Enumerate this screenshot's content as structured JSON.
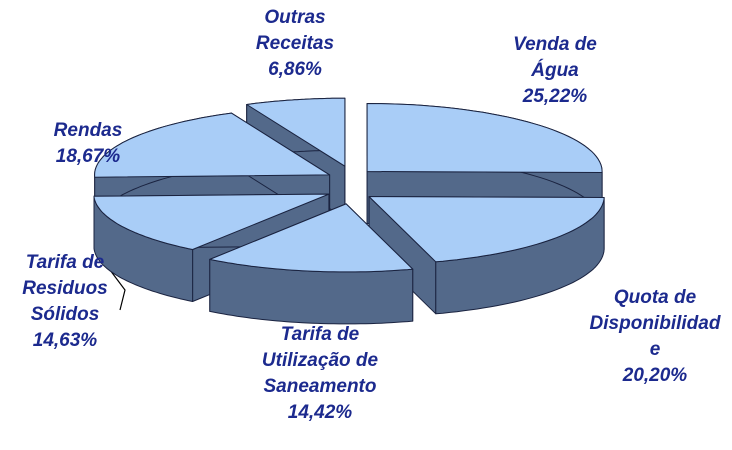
{
  "chart_data": {
    "type": "pie",
    "categories": [
      "Venda de Água",
      "Quota de Disponibilidade",
      "Tarifa de Utilização de Saneamento",
      "Tarifa de Residuos Sólidos",
      "Rendas",
      "Outras Receitas"
    ],
    "values": [
      25.22,
      20.2,
      14.42,
      14.63,
      18.67,
      6.86
    ],
    "value_labels": [
      "25,22%",
      "20,20%",
      "14,42%",
      "14,63%",
      "18,67%",
      "6,86%"
    ],
    "top_color": "#a9cdf7",
    "side_color": "#53698a",
    "label_color": "#1c2a8e"
  }
}
